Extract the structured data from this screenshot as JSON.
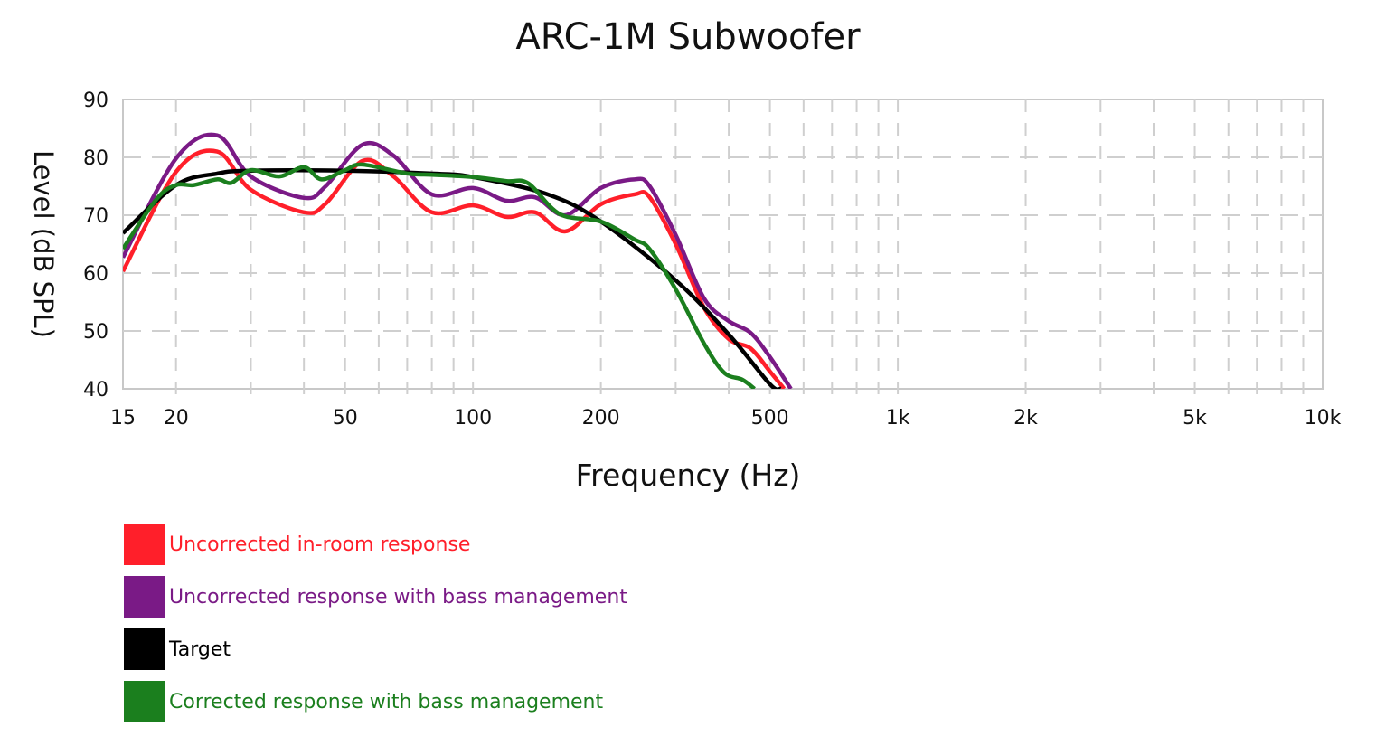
{
  "chart_data": {
    "type": "line",
    "title": "ARC-1M Subwoofer",
    "xlabel": "Frequency (Hz)",
    "ylabel": "Level (dB SPL)",
    "xscale": "log",
    "xlim": [
      15,
      10000
    ],
    "ylim": [
      40,
      90
    ],
    "grid": true,
    "legend_position": "bottom-left",
    "xticks": [
      {
        "v": 15,
        "label": "15"
      },
      {
        "v": 20,
        "label": "20"
      },
      {
        "v": 50,
        "label": "50"
      },
      {
        "v": 100,
        "label": "100"
      },
      {
        "v": 200,
        "label": "200"
      },
      {
        "v": 500,
        "label": "500"
      },
      {
        "v": 1000,
        "label": "1k"
      },
      {
        "v": 2000,
        "label": "2k"
      },
      {
        "v": 5000,
        "label": "5k"
      },
      {
        "v": 10000,
        "label": "10k"
      }
    ],
    "yticks": [
      40,
      50,
      60,
      70,
      80,
      90
    ],
    "series": [
      {
        "name": "Uncorrected in-room response",
        "color": "#ff1f2a",
        "x": [
          15,
          20,
          25,
          30,
          40,
          45,
          55,
          65,
          80,
          100,
          120,
          140,
          165,
          200,
          240,
          260,
          300,
          350,
          400,
          450,
          500,
          540
        ],
        "y": [
          60.3,
          77.5,
          81,
          74.4,
          70.5,
          72,
          79.4,
          76.7,
          70.5,
          71.7,
          69.7,
          70.5,
          67.2,
          71.9,
          73.6,
          73.2,
          65,
          54,
          48.6,
          47,
          43,
          40
        ]
      },
      {
        "name": "Uncorrected response with bass management",
        "color": "#7a1a86",
        "x": [
          15,
          20,
          25,
          30,
          40,
          45,
          55,
          65,
          80,
          100,
          120,
          140,
          165,
          200,
          240,
          260,
          300,
          350,
          400,
          450,
          500,
          560
        ],
        "y": [
          62.7,
          79.8,
          83.8,
          76.7,
          73,
          75,
          82.2,
          80.3,
          73.6,
          74.7,
          72.5,
          73.1,
          70,
          74.7,
          76.2,
          75.1,
          66.6,
          55.6,
          51.7,
          49.7,
          45.5,
          40
        ]
      },
      {
        "name": "Target",
        "color": "#000000",
        "x": [
          15,
          20,
          25,
          30,
          50,
          80,
          100,
          150,
          200,
          300,
          400,
          500,
          530
        ],
        "y": [
          66.9,
          75.2,
          77.2,
          77.7,
          77.7,
          77.2,
          76.6,
          73.6,
          68.9,
          58.75,
          49.4,
          40.8,
          40
        ]
      },
      {
        "name": "Corrected response with bass management",
        "color": "#1b7f1e",
        "x": [
          15,
          18,
          20,
          22,
          25,
          27,
          30,
          35,
          40,
          44,
          50,
          55,
          70,
          80,
          100,
          120,
          135,
          160,
          200,
          240,
          260,
          300,
          350,
          390,
          430,
          460
        ],
        "y": [
          64.2,
          72.8,
          75.2,
          75.2,
          76.2,
          75.6,
          77.8,
          76.7,
          78.3,
          76.2,
          77.8,
          78.75,
          77.2,
          77,
          76.6,
          75.9,
          75.5,
          70.2,
          68.9,
          65.8,
          64.2,
          57.2,
          47.8,
          42.8,
          41.6,
          40
        ]
      }
    ]
  }
}
